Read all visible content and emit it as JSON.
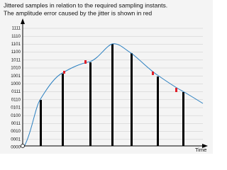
{
  "caption": [
    "Jittered samples in relation to the required sampling instants.",
    "The amplitude error caused by the jitter is shown in red"
  ],
  "y_labels": [
    "1111",
    "1110",
    "1101",
    "1100",
    "1011",
    "1010",
    "1001",
    "1000",
    "0111",
    "0110",
    "0101",
    "0100",
    "0011",
    "0010",
    "0001",
    "0000"
  ],
  "x_axis_label": "Time"
}
